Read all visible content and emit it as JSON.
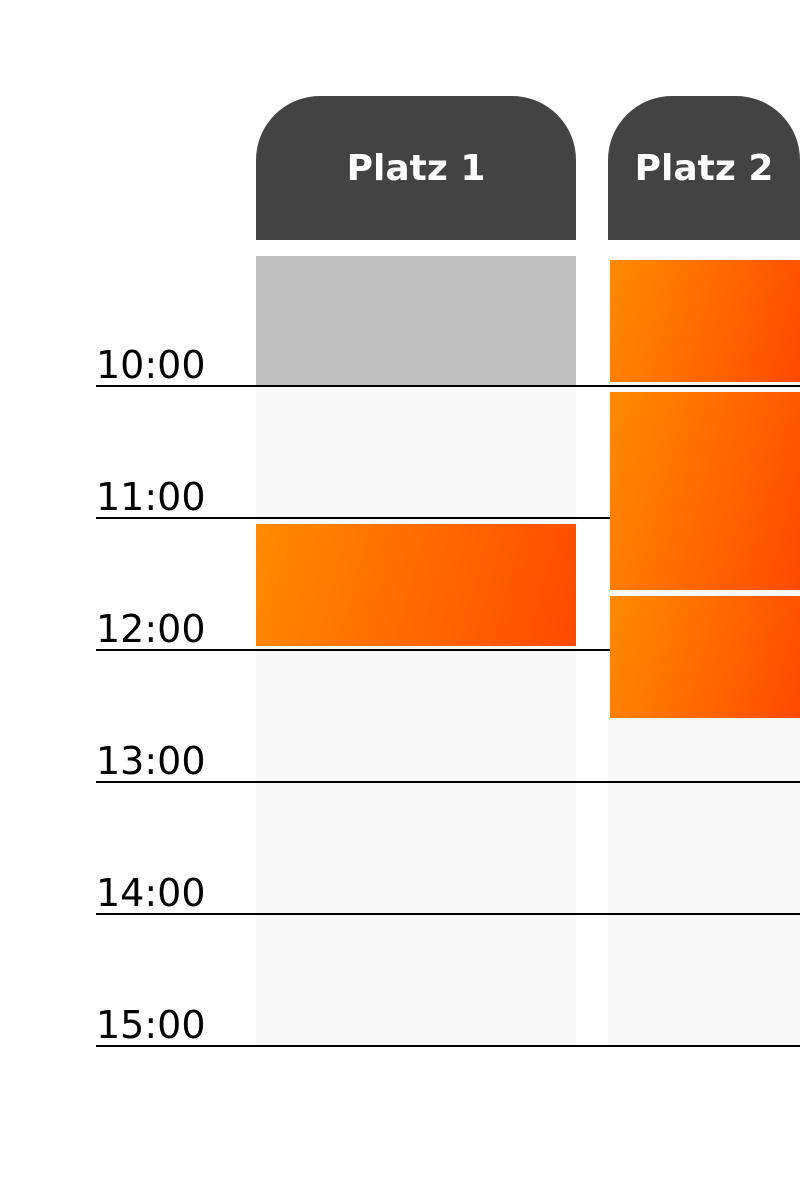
{
  "courts": [
    {
      "label": "Platz 1"
    },
    {
      "label": "Platz 2"
    }
  ],
  "times": [
    "10:00",
    "11:00",
    "12:00",
    "13:00",
    "14:00",
    "15:00"
  ],
  "colors": {
    "header": "#434343",
    "blocked": "#bfbfbf",
    "booking_start": "#ff8a00",
    "booking_end": "#ff4a00",
    "column_bg": "#f8f8f8"
  },
  "bookings": [
    {
      "court": "Platz 1",
      "status": "blocked",
      "end": "10:00"
    },
    {
      "court": "Platz 1",
      "status": "booked",
      "start": "11:00",
      "end": "12:00"
    },
    {
      "court": "Platz 2",
      "status": "booked",
      "end": "10:00"
    },
    {
      "court": "Platz 2",
      "status": "booked",
      "start": "10:00",
      "end": "11:30"
    },
    {
      "court": "Platz 2",
      "status": "booked",
      "start": "11:30",
      "end": "12:30"
    }
  ]
}
